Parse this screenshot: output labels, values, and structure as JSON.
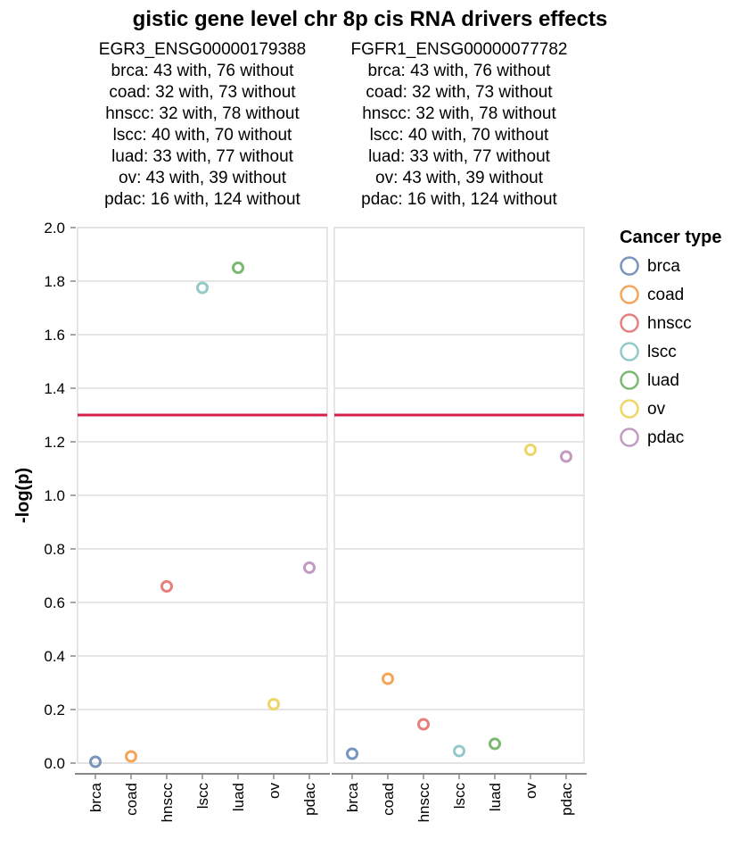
{
  "chart_data": {
    "type": "scatter",
    "title": "gistic gene level chr 8p cis RNA drivers effects",
    "ylabel": "-log(p)",
    "xlabel": "",
    "ylim": [
      0,
      2.0
    ],
    "y_ticks": [
      "0.0",
      "0.2",
      "0.4",
      "0.6",
      "0.8",
      "1.0",
      "1.2",
      "1.4",
      "1.6",
      "1.8",
      "2.0"
    ],
    "categories": [
      "brca",
      "coad",
      "hnscc",
      "lscc",
      "luad",
      "ov",
      "pdac"
    ],
    "threshold_line": {
      "y": 1.3,
      "color": "#d62048"
    },
    "grid": true,
    "legend": {
      "title": "Cancer type",
      "placement": "right",
      "items": [
        {
          "label": "brca",
          "color": "#7895bd"
        },
        {
          "label": "coad",
          "color": "#f3a55a"
        },
        {
          "label": "hnscc",
          "color": "#e67f7d"
        },
        {
          "label": "lscc",
          "color": "#93c9c7"
        },
        {
          "label": "luad",
          "color": "#7bb872"
        },
        {
          "label": "ov",
          "color": "#eed565"
        },
        {
          "label": "pdac",
          "color": "#c29ac2"
        }
      ]
    },
    "facets": [
      {
        "header": [
          "EGR3_ENSG00000179388",
          "brca: 43 with, 76 without",
          "coad: 32 with, 73 without",
          "hnscc: 32 with, 78 without",
          "lscc: 40 with, 70 without",
          "luad: 33 with, 77 without",
          "ov: 43 with, 39 without",
          "pdac: 16 with, 124 without"
        ],
        "values": [
          0.005,
          0.025,
          0.66,
          1.775,
          1.85,
          0.22,
          0.73
        ]
      },
      {
        "header": [
          "FGFR1_ENSG00000077782",
          "brca: 43 with, 76 without",
          "coad: 32 with, 73 without",
          "hnscc: 32 with, 78 without",
          "lscc: 40 with, 70 without",
          "luad: 33 with, 77 without",
          "ov: 43 with, 39 without",
          "pdac: 16 with, 124 without"
        ],
        "values": [
          0.035,
          0.315,
          0.145,
          0.045,
          0.072,
          1.17,
          1.145
        ]
      }
    ]
  }
}
